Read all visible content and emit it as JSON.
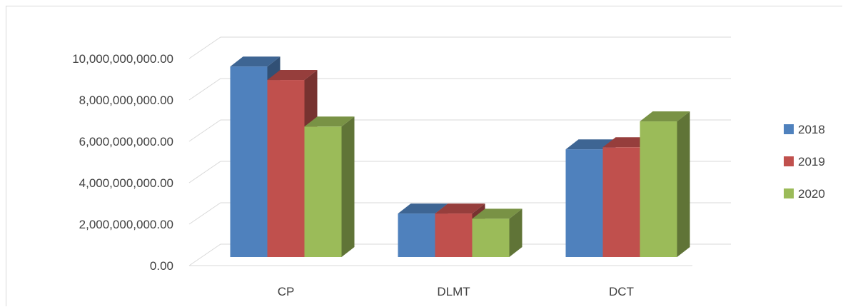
{
  "chart_data": {
    "type": "bar",
    "style": "3d-clustered-column",
    "categories": [
      "CP",
      "DLMT",
      "DCT"
    ],
    "series": [
      {
        "name": "2018",
        "color": "#4f81bd",
        "values": [
          9200000000,
          2100000000,
          5200000000
        ]
      },
      {
        "name": "2019",
        "color": "#c0504d",
        "values": [
          8550000000,
          2100000000,
          5300000000
        ]
      },
      {
        "name": "2020",
        "color": "#9bbb59",
        "values": [
          6300000000,
          1850000000,
          6550000000
        ]
      }
    ],
    "y_ticks": [
      "0.00",
      "2,000,000,000.00",
      "4,000,000,000.00",
      "6,000,000,000.00",
      "8,000,000,000.00",
      "10,000,000,000.00"
    ],
    "ylim": [
      0,
      10000000000
    ],
    "grid": true,
    "legend_position": "right"
  }
}
